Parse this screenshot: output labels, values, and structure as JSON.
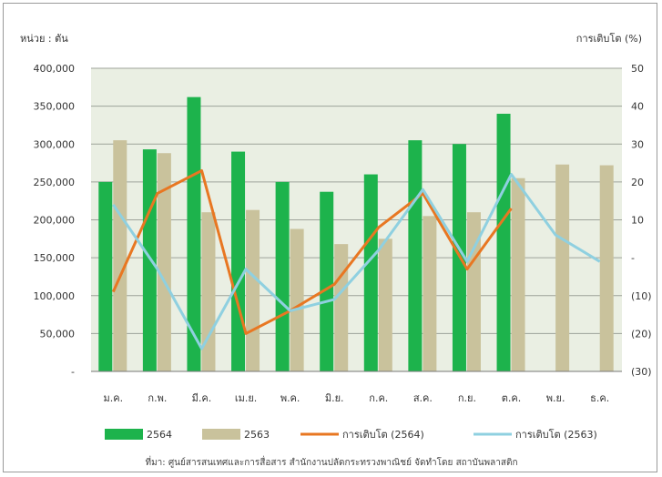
{
  "chart_data": {
    "type": "bar",
    "unit_label": "หน่วย : ตัน",
    "right_axis_label": "การเติบโต (%)",
    "categories": [
      "ม.ค.",
      "ก.พ.",
      "มี.ค.",
      "เม.ย.",
      "พ.ค.",
      "มิ.ย.",
      "ก.ค.",
      "ส.ค.",
      "ก.ย.",
      "ต.ค.",
      "พ.ย.",
      "ธ.ค."
    ],
    "left_ticks": [
      "400,000",
      "350,000",
      "300,000",
      "250,000",
      "200,000",
      "150,000",
      "100,000",
      "50,000",
      "-"
    ],
    "right_ticks": [
      "50",
      "40",
      "30",
      "20",
      "10",
      "-",
      "(10)",
      "(20)",
      "(30)"
    ],
    "ylim": [
      0,
      400000
    ],
    "y2lim": [
      -30,
      50
    ],
    "series": [
      {
        "name": "2564",
        "kind": "bar",
        "color": "#1db34c",
        "values": [
          250000,
          293000,
          362000,
          290000,
          250000,
          237000,
          260000,
          305000,
          300000,
          340000,
          null,
          null
        ]
      },
      {
        "name": "2563",
        "kind": "bar",
        "color": "#c9c29c",
        "values": [
          305000,
          288000,
          210000,
          213000,
          188000,
          168000,
          175000,
          205000,
          210000,
          255000,
          273000,
          272000
        ]
      },
      {
        "name": "การเติบโต (2564)",
        "kind": "line",
        "axis": "right",
        "color": "#e87722",
        "values": [
          -9,
          17,
          23,
          -20,
          -14,
          -7,
          8,
          17,
          -3,
          13,
          null,
          null
        ]
      },
      {
        "name": "การเติบโต (2563)",
        "kind": "line",
        "axis": "right",
        "color": "#8fd0e0",
        "values": [
          14,
          -3,
          -24,
          -3,
          -14,
          -11,
          2,
          18,
          -1,
          22,
          6,
          -1
        ]
      }
    ],
    "source": "ที่มา: ศูนย์สารสนเทศและการสื่อสาร สำนักงานปลัดกระทรวงพาณิชย์ จัดทำโดย สถาบันพลาสติก"
  }
}
